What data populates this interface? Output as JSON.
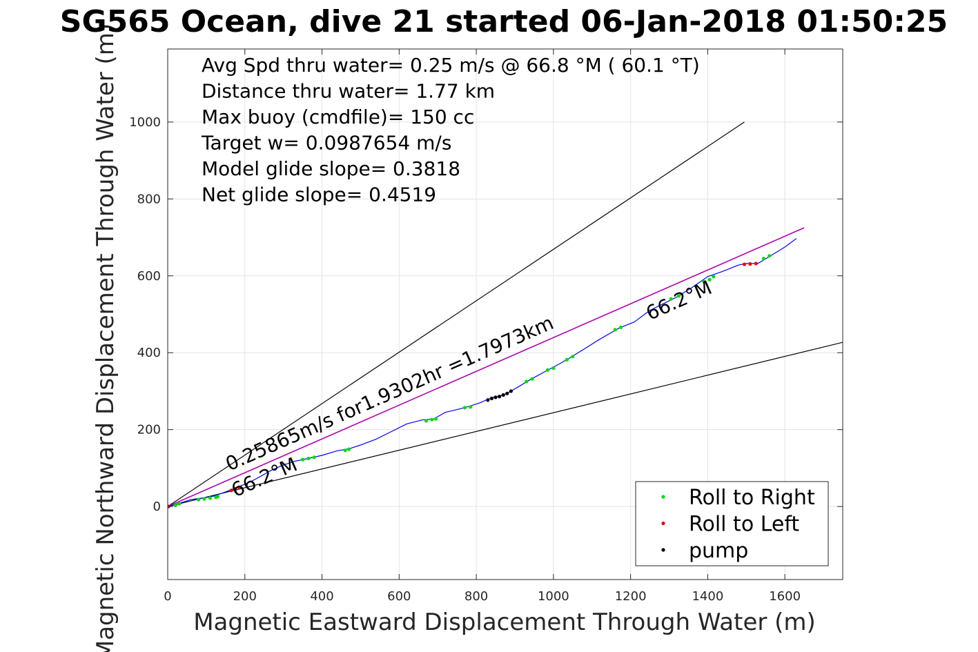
{
  "chart_data": {
    "type": "line",
    "title": "SG565 Ocean, dive 21 started 06-Jan-2018 01:50:25",
    "xlabel": "Magnetic Eastward Displacement Through Water (m)",
    "ylabel": "Magnetic Northward Displacement Through Water (m)",
    "xlim": [
      0,
      1750
    ],
    "ylim": [
      -190,
      1190
    ],
    "xticks": [
      0,
      200,
      400,
      600,
      800,
      1000,
      1200,
      1400,
      1600
    ],
    "yticks": [
      0,
      200,
      400,
      600,
      800,
      1000
    ],
    "grid": true,
    "info_lines": [
      "Avg Spd thru water=  0.25 m/s @  66.8 °M ( 60.1 °T)",
      "Distance thru water=  1.77 km",
      "Max buoy (cmdfile)= 150 cc",
      "Target w= 0.0987654 m/s",
      "Model glide slope= 0.3818",
      "Net glide slope= 0.4519"
    ],
    "annotations": [
      {
        "text": "0.25865m/s for1.9302hr =1.7973km",
        "x": 160,
        "y": 92,
        "angle": 23.8
      },
      {
        "text": "66.2°M",
        "x": 175,
        "y": 24,
        "angle": 23.8
      },
      {
        "text": "66.2°M",
        "x": 1250,
        "y": 484,
        "angle": 23.8
      }
    ],
    "reference_lines": [
      {
        "name": "upper",
        "x": [
          0,
          1495
        ],
        "y": [
          0,
          1000
        ],
        "color": "#000000"
      },
      {
        "name": "lower",
        "x": [
          0,
          1750
        ],
        "y": [
          0,
          427
        ],
        "color": "#000000"
      },
      {
        "name": "heading",
        "x": [
          0,
          1650
        ],
        "y": [
          0,
          725
        ],
        "color": "#b000b0"
      }
    ],
    "series": [
      {
        "role": "track",
        "color": "#0000ff",
        "x": [
          0,
          15,
          35,
          60,
          90,
          120,
          150,
          180,
          210,
          240,
          270,
          300,
          330,
          360,
          400,
          440,
          470,
          500,
          540,
          580,
          620,
          660,
          690,
          720,
          750,
          780,
          810,
          840,
          870,
          890,
          910,
          940,
          980,
          1010,
          1040,
          1080,
          1120,
          1170,
          1210,
          1250,
          1290,
          1320,
          1360,
          1400,
          1440,
          1480,
          1500,
          1530,
          1560,
          1600,
          1630
        ],
        "y": [
          0,
          4,
          10,
          18,
          22,
          27,
          38,
          50,
          62,
          78,
          95,
          108,
          118,
          124,
          133,
          145,
          150,
          160,
          175,
          195,
          215,
          225,
          228,
          245,
          252,
          260,
          270,
          283,
          290,
          300,
          312,
          330,
          352,
          368,
          385,
          410,
          435,
          464,
          480,
          510,
          530,
          545,
          570,
          598,
          612,
          628,
          632,
          632,
          650,
          675,
          697
        ]
      },
      {
        "name": "Roll to Right",
        "role": "marker",
        "color": "#00dd00",
        "x": [
          20,
          30,
          80,
          95,
          110,
          125,
          130,
          350,
          365,
          380,
          460,
          470,
          670,
          685,
          695,
          770,
          785,
          930,
          945,
          985,
          1000,
          1035,
          1050,
          1160,
          1175,
          1305,
          1325,
          1390,
          1405,
          1415,
          1545,
          1560
        ],
        "y": [
          3,
          7,
          18,
          20,
          22,
          24,
          26,
          122,
          125,
          128,
          146,
          149,
          223,
          226,
          228,
          257,
          259,
          325,
          332,
          355,
          360,
          382,
          390,
          460,
          466,
          540,
          548,
          585,
          590,
          598,
          645,
          652
        ]
      },
      {
        "name": "Roll to Left",
        "role": "marker",
        "color": "#ee0000",
        "x": [
          2,
          165,
          175,
          185,
          1495,
          1510,
          1525
        ],
        "y": [
          0,
          42,
          46,
          50,
          630,
          631,
          632
        ]
      },
      {
        "name": "pump",
        "role": "marker",
        "color": "#000000",
        "x": [
          830,
          840,
          850,
          860,
          870,
          880,
          890
        ],
        "y": [
          277,
          281,
          284,
          286,
          290,
          294,
          300
        ]
      }
    ],
    "legend": {
      "position": "bottom-right",
      "entries": [
        "Roll to Right",
        "Roll to Left",
        "pump"
      ],
      "colors": [
        "#00dd00",
        "#ee0000",
        "#000000"
      ]
    }
  }
}
